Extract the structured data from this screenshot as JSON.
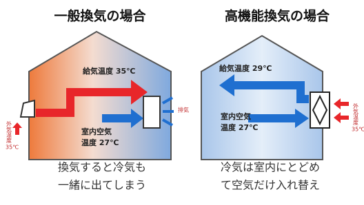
{
  "left": {
    "title": "一般換気の場合",
    "supply_label": "給気温度 35℃",
    "room_label": [
      "室内空気",
      "温度 27℃"
    ],
    "exhaust_label": "排気",
    "outdoor_label": "外気温度",
    "outdoor_temp": "35℃",
    "caption": [
      "換気すると冷気も",
      "一緒に出てしまう"
    ]
  },
  "right": {
    "title": "高機能換気の場合",
    "supply_label": "給気温度 29℃",
    "room_label": [
      "室内空気",
      "温度 27℃"
    ],
    "outdoor_label": "外気温度",
    "outdoor_temp": "35℃",
    "caption": [
      "冷気は室内にとどめ",
      "て空気だけ入れ替え"
    ]
  }
}
